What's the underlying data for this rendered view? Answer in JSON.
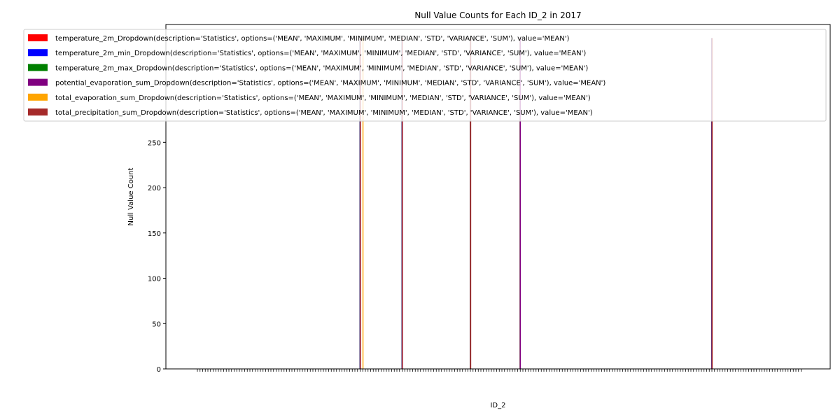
{
  "chart_data": {
    "type": "bar",
    "title": "Null Value Counts for Each ID_2 in 2017",
    "xlabel": "ID_2",
    "ylabel": "Null Value Count",
    "ylim": [
      0,
      380
    ],
    "yticks": [
      0,
      50,
      100,
      150,
      200,
      250
    ],
    "category_count": 231,
    "legend_position": "upper-right",
    "grid": false,
    "series": [
      {
        "name": "temperature_2m_Dropdown(description='Statistics', options=('MEAN', 'MAXIMUM', 'MINIMUM', 'MEDIAN', 'STD', 'VARIANCE', 'SUM'), value='MEAN')",
        "color": "#ff0000",
        "values": [
          [
            62,
            365
          ],
          [
            78,
            365
          ],
          [
            104,
            365
          ],
          [
            123,
            365
          ],
          [
            196,
            365
          ]
        ]
      },
      {
        "name": "temperature_2m_min_Dropdown(description='Statistics', options=('MEAN', 'MAXIMUM', 'MINIMUM', 'MEDIAN', 'STD', 'VARIANCE', 'SUM'), value='MEAN')",
        "color": "#0000ff",
        "values": [
          [
            62,
            365
          ],
          [
            78,
            365
          ],
          [
            104,
            365
          ],
          [
            123,
            365
          ],
          [
            196,
            365
          ]
        ]
      },
      {
        "name": "temperature_2m_max_Dropdown(description='Statistics', options=('MEAN', 'MAXIMUM', 'MINIMUM', 'MEDIAN', 'STD', 'VARIANCE', 'SUM'), value='MEAN')",
        "color": "#008000",
        "values": [
          [
            62,
            365
          ],
          [
            78,
            365
          ],
          [
            104,
            365
          ],
          [
            123,
            365
          ],
          [
            196,
            365
          ]
        ]
      },
      {
        "name": "potential_evaporation_sum_Dropdown(description='Statistics', options=('MEAN', 'MAXIMUM', 'MINIMUM', 'MEDIAN', 'STD', 'VARIANCE', 'SUM'), value='MEAN')",
        "color": "#800080",
        "values": [
          [
            62,
            365
          ],
          [
            78,
            365
          ],
          [
            104,
            365
          ],
          [
            123,
            365
          ],
          [
            196,
            365
          ]
        ]
      },
      {
        "name": "total_evaporation_sum_Dropdown(description='Statistics', options=('MEAN', 'MAXIMUM', 'MINIMUM', 'MEDIAN', 'STD', 'VARIANCE', 'SUM'), value='MEAN')",
        "color": "#ffa500",
        "values": [
          [
            63,
            365
          ],
          [
            104,
            365
          ]
        ]
      },
      {
        "name": "total_precipitation_sum_Dropdown(description='Statistics', options=('MEAN', 'MAXIMUM', 'MINIMUM', 'MEDIAN', 'STD', 'VARIANCE', 'SUM'), value='MEAN')",
        "color": "#a52a2a",
        "values": [
          [
            62,
            365
          ],
          [
            78,
            365
          ],
          [
            104,
            365
          ],
          [
            196,
            365
          ]
        ]
      }
    ]
  }
}
